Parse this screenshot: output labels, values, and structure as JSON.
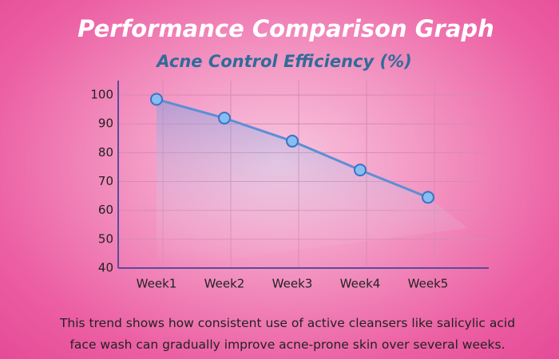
{
  "chart_data": {
    "type": "line",
    "title": "Performance Comparison Graph",
    "subtitle": "Acne Control Efficiency (%)",
    "categories": [
      "Week1",
      "Week2",
      "Week3",
      "Week4",
      "Week5"
    ],
    "series": [
      {
        "name": "Acne Control Efficiency",
        "color": "#5b8fd6",
        "values": [
          98.5,
          92,
          84,
          74,
          64.5
        ]
      }
    ],
    "ylim": [
      40,
      105
    ],
    "yticks": [
      40,
      50,
      60,
      70,
      80,
      90,
      100
    ],
    "grid": true,
    "caption": "This trend shows how consistent use of active cleansers like salicylic acid face wash can gradually improve acne-prone skin over several weeks."
  }
}
